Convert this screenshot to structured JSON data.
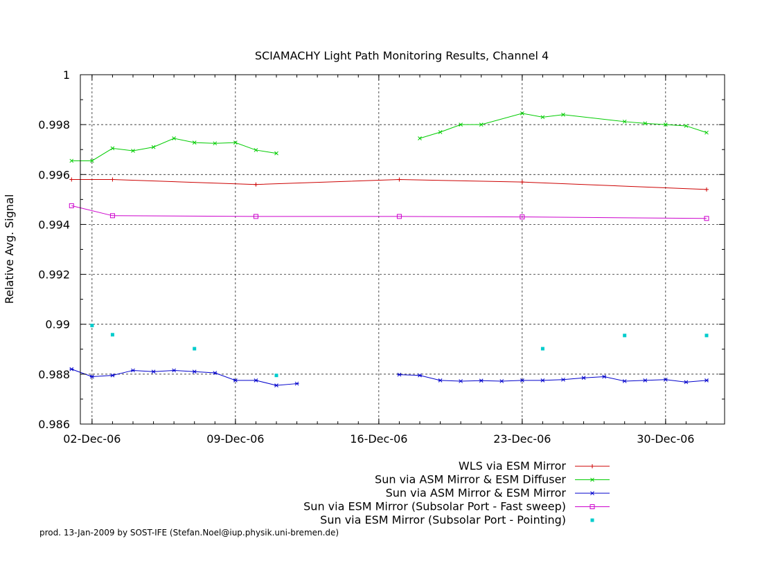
{
  "footer": "prod. 13-Jan-2009 by SOST-IFE (Stefan.Noel@iup.physik.uni-bremen.de)",
  "chart_data": {
    "type": "line",
    "title": "SCIAMACHY Light Path Monitoring Results, Channel 4",
    "xlabel": "",
    "ylabel": "Relative Avg. Signal",
    "x_tick_labels": [
      "02-Dec-06",
      "09-Dec-06",
      "16-Dec-06",
      "23-Dec-06",
      "30-Dec-06"
    ],
    "x_ticks": [
      "2006-12-02",
      "2006-12-09",
      "2006-12-16",
      "2006-12-23",
      "2006-12-30"
    ],
    "xlim": [
      "2006-12-01",
      "2007-01-01"
    ],
    "ylim": [
      0.986,
      1.0
    ],
    "y_ticks": [
      0.986,
      0.988,
      0.99,
      0.992,
      0.994,
      0.996,
      0.998,
      1
    ],
    "y_tick_labels": [
      "0.986",
      "0.988",
      "0.99",
      "0.992",
      "0.994",
      "0.996",
      "0.998",
      "1"
    ],
    "grid": true,
    "legend_position": "below",
    "series": [
      {
        "name": "WLS via ESM Mirror",
        "color": "#cc0000",
        "marker": "plus",
        "x": [
          "2006-12-01",
          "2006-12-03",
          "2006-12-10",
          "2006-12-17",
          "2006-12-23",
          "2007-01-01"
        ],
        "y": [
          0.9958,
          0.9958,
          0.9956,
          0.9958,
          0.9957,
          0.9954
        ]
      },
      {
        "name": "Sun via ASM Mirror & ESM Diffuser",
        "color": "#00cc00",
        "marker": "x",
        "segments": [
          {
            "x": [
              "2006-12-01",
              "2006-12-02",
              "2006-12-03",
              "2006-12-04",
              "2006-12-05",
              "2006-12-06",
              "2006-12-07",
              "2006-12-08",
              "2006-12-09",
              "2006-12-10",
              "2006-12-11"
            ],
            "y": [
              0.99655,
              0.99655,
              0.99705,
              0.99695,
              0.9971,
              0.99745,
              0.99728,
              0.99725,
              0.99728,
              0.99698,
              0.99685
            ]
          },
          {
            "x": [
              "2006-12-18",
              "2006-12-19",
              "2006-12-20",
              "2006-12-21",
              "2006-12-23",
              "2006-12-24",
              "2006-12-25",
              "2006-12-28",
              "2006-12-29",
              "2006-12-30",
              "2006-12-31",
              "2007-01-01"
            ],
            "y": [
              0.99745,
              0.9977,
              0.998,
              0.998,
              0.99845,
              0.9983,
              0.9984,
              0.99812,
              0.99805,
              0.998,
              0.99795,
              0.99768
            ]
          }
        ]
      },
      {
        "name": "Sun via ASM Mirror & ESM Mirror",
        "color": "#0000cc",
        "marker": "star",
        "segments": [
          {
            "x": [
              "2006-12-01",
              "2006-12-02",
              "2006-12-03",
              "2006-12-04",
              "2006-12-05",
              "2006-12-06",
              "2006-12-07",
              "2006-12-08",
              "2006-12-09",
              "2006-12-10",
              "2006-12-11",
              "2006-12-12"
            ],
            "y": [
              0.9882,
              0.9879,
              0.98795,
              0.98815,
              0.9881,
              0.98815,
              0.9881,
              0.98805,
              0.98775,
              0.98775,
              0.98755,
              0.98762
            ]
          },
          {
            "x": [
              "2006-12-17",
              "2006-12-18",
              "2006-12-19",
              "2006-12-20",
              "2006-12-21",
              "2006-12-22",
              "2006-12-23",
              "2006-12-24",
              "2006-12-25",
              "2006-12-26",
              "2006-12-27",
              "2006-12-28",
              "2006-12-29",
              "2006-12-30",
              "2006-12-31",
              "2007-01-01"
            ],
            "y": [
              0.98798,
              0.98795,
              0.98775,
              0.98772,
              0.98774,
              0.98772,
              0.98775,
              0.98775,
              0.98778,
              0.98785,
              0.9879,
              0.98772,
              0.98775,
              0.98778,
              0.98768,
              0.98775
            ]
          }
        ]
      },
      {
        "name": "Sun via ESM Mirror (Subsolar Port - Fast sweep)",
        "color": "#cc00cc",
        "marker": "square",
        "x": [
          "2006-12-01",
          "2006-12-03",
          "2006-12-10",
          "2006-12-17",
          "2006-12-23",
          "2007-01-01"
        ],
        "y": [
          0.99475,
          0.99435,
          0.99432,
          0.99432,
          0.9943,
          0.99424
        ]
      },
      {
        "name": "Sun via ESM Mirror (Subsolar Port - Pointing)",
        "color": "#00cccc",
        "marker": "dot",
        "x": [
          "2006-12-02",
          "2006-12-03",
          "2006-12-07",
          "2006-12-11",
          "2006-12-24",
          "2006-12-28",
          "2007-01-01"
        ],
        "y": [
          0.98995,
          0.98958,
          0.98902,
          0.98795,
          0.98902,
          0.98955,
          0.98955
        ]
      }
    ]
  }
}
